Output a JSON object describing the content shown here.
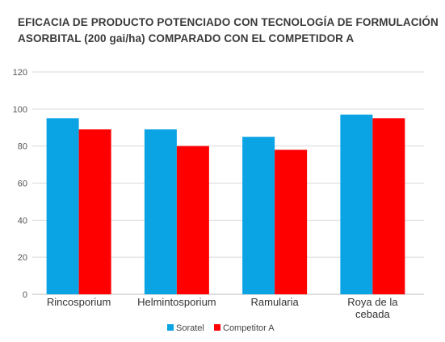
{
  "chart_data": {
    "type": "bar",
    "title_lines": [
      "EFICACIA DE PRODUCTO POTENCIADO CON TECNOLOGÍA DE FORMULACIÓN",
      "ASORBITAL (200 gai/ha) COMPARADO CON EL COMPETIDOR A"
    ],
    "categories": [
      [
        "Rincosporium"
      ],
      [
        "Helmintosporium"
      ],
      [
        "Ramularia"
      ],
      [
        "Roya de la",
        "cebada"
      ]
    ],
    "series": [
      {
        "name": "Soratel",
        "color": "#0aa3e3",
        "values": [
          95,
          89,
          85,
          97
        ]
      },
      {
        "name": "Competitor A",
        "color": "#ff0000",
        "values": [
          89,
          80,
          78,
          95
        ]
      }
    ],
    "y_ticks": [
      "0",
      "20",
      "40",
      "60",
      "80",
      "100",
      "120"
    ],
    "ylim": [
      0,
      120
    ],
    "grid": true,
    "legend_position": "bottom-center",
    "xlabel": "",
    "ylabel": ""
  }
}
